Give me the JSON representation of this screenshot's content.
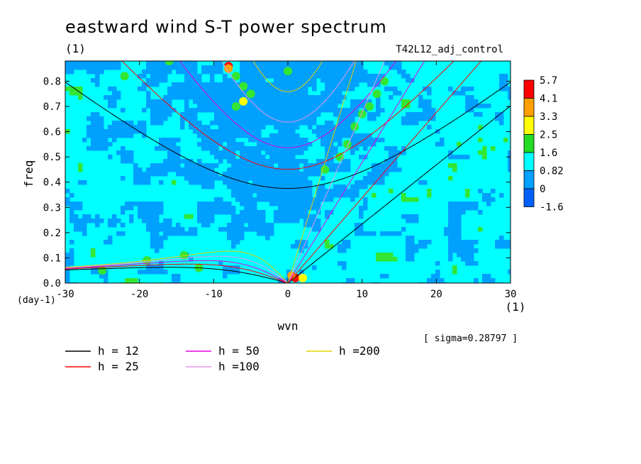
{
  "chart_data": {
    "type": "heatmap",
    "title": "eastward wind S-T power spectrum",
    "subtitle": "(1)",
    "run_label": "T42L12_adj_control",
    "xlabel": "wvn",
    "ylabel": "freq",
    "x_unit": "(1)",
    "y_unit": "(day-1)",
    "xlim": [
      -30,
      30
    ],
    "ylim": [
      0,
      0.88
    ],
    "x_ticks": [
      "-30",
      "-20",
      "-10",
      "0",
      "10",
      "20",
      "30"
    ],
    "x_tick_values": [
      -30,
      -20,
      -10,
      0,
      10,
      20,
      30
    ],
    "y_ticks": [
      "0.0",
      "0.1",
      "0.2",
      "0.3",
      "0.4",
      "0.5",
      "0.6",
      "0.7",
      "0.8"
    ],
    "y_tick_values": [
      0,
      0.1,
      0.2,
      0.3,
      0.4,
      0.5,
      0.6,
      0.7,
      0.8
    ],
    "sigma_text": "[ sigma=0.28797 ]",
    "colorbar": {
      "labels": [
        "5.7",
        "4.1",
        "3.3",
        "2.5",
        "1.6",
        "0.82",
        "0",
        "-1.6"
      ],
      "colors": [
        "#ff0000",
        "#ffa000",
        "#ffff00",
        "#22dd22",
        "#00ffff",
        "#00a0ff",
        "#0060ff"
      ]
    },
    "field_colors": {
      "high": "#33e633",
      "mid": "#00ffff",
      "low": "#00a0ff",
      "peak1": "#ffa000",
      "peak2": "#ff0000",
      "peak3": "#ffff00"
    },
    "dispersion_curves": [
      {
        "name": "h = 12",
        "h": 12,
        "color": "#000000"
      },
      {
        "name": "h = 25",
        "h": 25,
        "color": "#ff0000"
      },
      {
        "name": "h = 50",
        "h": 50,
        "color": "#e000e0"
      },
      {
        "name": "h =100",
        "h": 100,
        "color": "#e099e6"
      },
      {
        "name": "h =200",
        "h": 200,
        "color": "#e6d000"
      }
    ],
    "grid": false,
    "legend_position": "bottom-left"
  }
}
